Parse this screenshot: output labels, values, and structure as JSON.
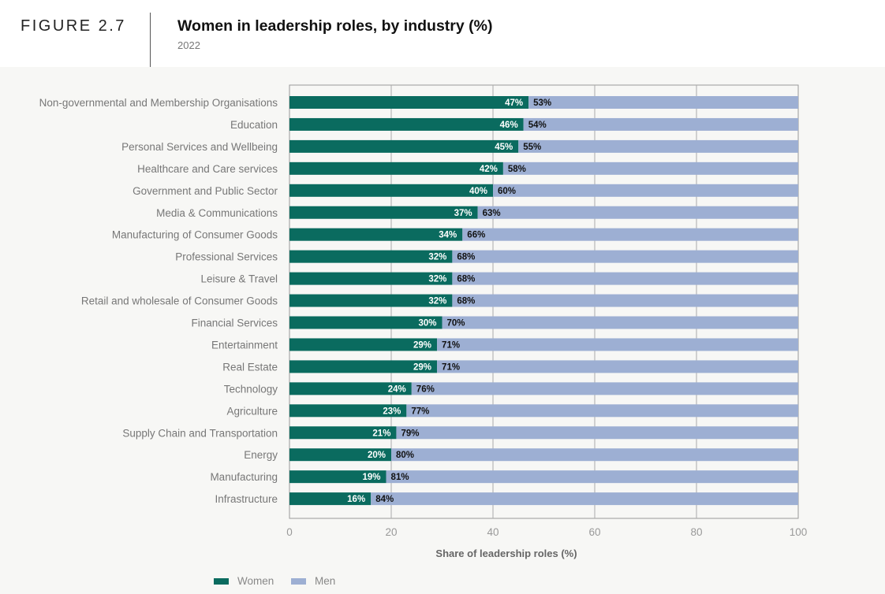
{
  "figure": {
    "label": "FIGURE 2.7",
    "title": "Women in leadership roles, by industry (%)",
    "subtitle": "2022"
  },
  "colors": {
    "women": "#0a6b5f",
    "men": "#9dafd3",
    "grid": "#aaaaaa",
    "frame": "#999999"
  },
  "chart_data": {
    "type": "bar",
    "orientation": "horizontal",
    "stacked": true,
    "title": "Women in leadership roles, by industry (%)",
    "subtitle": "2022",
    "xlabel": "Share of leadership roles (%)",
    "ylabel": "",
    "xlim": [
      0,
      100
    ],
    "xticks": [
      0,
      20,
      40,
      60,
      80,
      100
    ],
    "grid": true,
    "legend_position": "bottom-left",
    "categories": [
      "Non-governmental and Membership Organisations",
      "Education",
      "Personal Services and Wellbeing",
      "Healthcare and Care services",
      "Government and Public Sector",
      "Media & Communications",
      "Manufacturing of Consumer Goods",
      "Professional Services",
      "Leisure & Travel",
      "Retail and wholesale of Consumer Goods",
      "Financial Services",
      "Entertainment",
      "Real Estate",
      "Technology",
      "Agriculture",
      "Supply Chain and Transportation",
      "Energy",
      "Manufacturing",
      "Infrastructure"
    ],
    "series": [
      {
        "name": "Women",
        "values": [
          47,
          46,
          45,
          42,
          40,
          37,
          34,
          32,
          32,
          32,
          30,
          29,
          29,
          24,
          23,
          21,
          20,
          19,
          16
        ]
      },
      {
        "name": "Men",
        "values": [
          53,
          54,
          55,
          58,
          60,
          63,
          66,
          68,
          68,
          68,
          70,
          71,
          71,
          76,
          77,
          79,
          80,
          81,
          84
        ]
      }
    ]
  }
}
